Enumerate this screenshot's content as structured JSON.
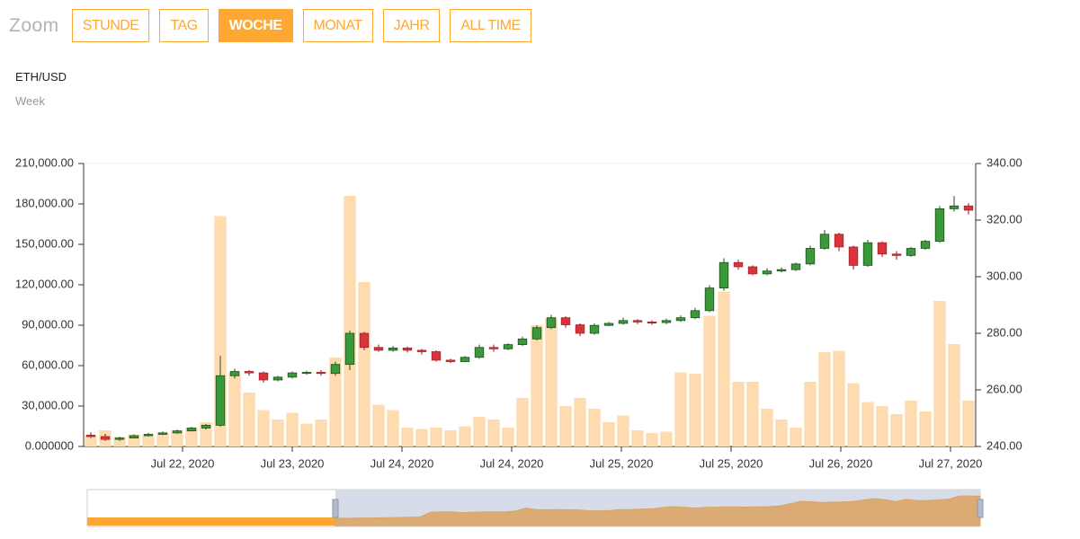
{
  "zoom": {
    "label": "Zoom",
    "buttons": [
      "STUNDE",
      "TAG",
      "WOCHE",
      "MONAT",
      "JAHR",
      "ALL TIME"
    ],
    "active": 2
  },
  "chart_data": {
    "type": "candlestick",
    "title": "ETH/USD",
    "subtitle": "Week",
    "xlim": [
      -0.5,
      61.5
    ],
    "xticks": [
      {
        "value": 6.375,
        "label": "Jul 22, 2020"
      },
      {
        "value": 14,
        "label": "Jul 23, 2020"
      },
      {
        "value": 21.625,
        "label": "Jul 24, 2020"
      },
      {
        "value": 29.25,
        "label": "Jul 24, 2020"
      },
      {
        "value": 36.875,
        "label": "Jul 25, 2020"
      },
      {
        "value": 44.5,
        "label": "Jul 25, 2020"
      },
      {
        "value": 52.125,
        "label": "Jul 26, 2020"
      },
      {
        "value": 59.75,
        "label": "Jul 27, 2020"
      }
    ],
    "ylim": [
      0,
      210000
    ],
    "yticks": [
      {
        "value": 0,
        "label": "0.000000"
      },
      {
        "value": 30000,
        "label": "30,000.00"
      },
      {
        "value": 60000,
        "label": "60,000.00"
      },
      {
        "value": 90000,
        "label": "90,000.00"
      },
      {
        "value": 120000,
        "label": "120,000.00"
      },
      {
        "value": 150000,
        "label": "150,000.00"
      },
      {
        "value": 180000,
        "label": "180,000.00"
      },
      {
        "value": 210000,
        "label": "210,000.00"
      }
    ],
    "y2lim": [
      240,
      340
    ],
    "y2ticks": [
      {
        "value": 240,
        "label": "240.00"
      },
      {
        "value": 260,
        "label": "260.00"
      },
      {
        "value": 280,
        "label": "280.00"
      },
      {
        "value": 300,
        "label": "300.00"
      },
      {
        "value": 320,
        "label": "320.00"
      },
      {
        "value": 340,
        "label": "340.00"
      }
    ],
    "up_color": "#3a9a3a",
    "down_color": "#d9343c",
    "volume_color": "#ffdcb0",
    "open": [
      244,
      243.5,
      242.5,
      243,
      243.8,
      244.3,
      244.8,
      245.5,
      246.5,
      247.5,
      265,
      266.5,
      266,
      263.5,
      264.5,
      266,
      266.2,
      265.8,
      269,
      280,
      275,
      274,
      274.8,
      274,
      273.5,
      270.5,
      270,
      271.5,
      275,
      274.5,
      276,
      278,
      282,
      285.5,
      283,
      280,
      282.8,
      283.5,
      284.5,
      284,
      283.8,
      284.5,
      285.5,
      288,
      296,
      305,
      303.5,
      301,
      302,
      302.5,
      304.5,
      310,
      315,
      310.5,
      304,
      312,
      308,
      307.5,
      310,
      312.5,
      324,
      325
    ],
    "high": [
      245,
      244.5,
      243.5,
      244.3,
      244.8,
      245.3,
      246,
      247,
      248,
      272,
      267.5,
      267,
      266.5,
      265,
      266.5,
      266.8,
      267,
      270,
      281,
      280.5,
      276,
      275.5,
      275.3,
      274.5,
      274,
      271,
      272,
      276,
      276,
      276.5,
      278.8,
      282.8,
      286.5,
      286,
      283.5,
      283.5,
      284,
      285.5,
      285,
      284.6,
      285.2,
      286.3,
      289,
      297,
      306.5,
      306,
      304,
      303,
      303.3,
      305,
      311,
      316.5,
      315.5,
      311,
      313,
      312.5,
      309,
      310.5,
      313,
      325,
      328.5,
      326
    ],
    "low": [
      243,
      242,
      242,
      242.8,
      243.5,
      244,
      244.5,
      245.3,
      246,
      247,
      264,
      265,
      262.5,
      263,
      264,
      265.3,
      265,
      265,
      267,
      274,
      273.5,
      273.5,
      273.2,
      272.5,
      270,
      269.5,
      269.8,
      271,
      273.5,
      274,
      275.5,
      277.5,
      281.5,
      282,
      279,
      279.5,
      282.5,
      283,
      283.2,
      283,
      283.2,
      284,
      285,
      287.5,
      295,
      302.5,
      300.5,
      300.5,
      301.5,
      302,
      304,
      309.5,
      309,
      302.5,
      303.5,
      307,
      306,
      307,
      309.5,
      312,
      323,
      322
    ],
    "close": [
      243.5,
      242.5,
      243,
      243.8,
      244.3,
      244.8,
      245.5,
      246.5,
      247.5,
      265,
      266.5,
      266,
      263.5,
      264.5,
      266,
      266.2,
      265.8,
      269,
      280,
      275,
      274,
      274.8,
      274,
      273.5,
      270.5,
      270,
      271.5,
      275,
      274.5,
      276,
      278,
      282,
      285.5,
      283,
      280,
      282.8,
      283.5,
      284.5,
      284,
      283.8,
      284.5,
      285.5,
      288,
      296,
      305,
      303.5,
      301,
      302,
      302.5,
      304.5,
      310,
      315,
      310.5,
      304,
      312,
      308,
      307.5,
      310,
      312.5,
      324,
      325,
      323.5
    ],
    "volume": [
      8000,
      12000,
      7000,
      9000,
      8000,
      10000,
      12000,
      14000,
      18000,
      171000,
      55000,
      40000,
      27000,
      20000,
      25000,
      17000,
      20000,
      66000,
      186000,
      122000,
      31000,
      27000,
      14000,
      13000,
      14000,
      12000,
      15000,
      22000,
      20000,
      14000,
      36000,
      90000,
      95000,
      30000,
      36000,
      28000,
      18000,
      23000,
      12000,
      10000,
      11000,
      55000,
      54000,
      97000,
      115000,
      48000,
      48000,
      28000,
      20000,
      14000,
      48000,
      70000,
      71000,
      47000,
      33000,
      30000,
      24000,
      34000,
      26000,
      108000,
      76000,
      34000
    ]
  }
}
